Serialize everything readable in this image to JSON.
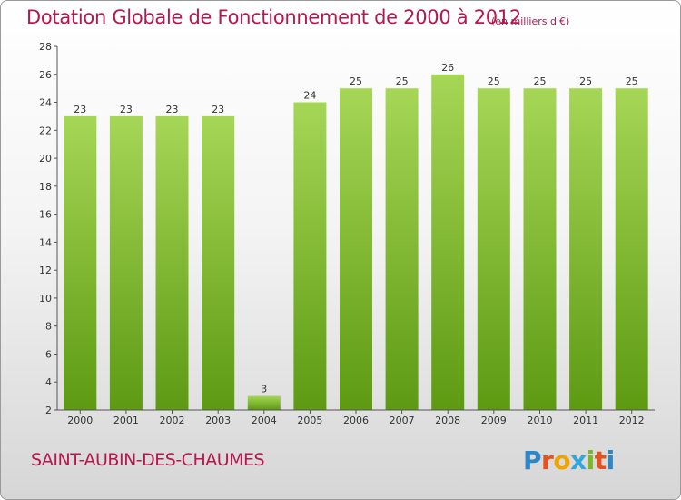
{
  "header": {
    "title": "Dotation Globale de Fonctionnement de 2000 à 2012",
    "units": "(en milliers d'€)"
  },
  "footer": {
    "commune": "SAINT-AUBIN-DES-CHAUMES",
    "brand_letters": [
      "P",
      "r",
      "o",
      "x",
      "i",
      "t",
      "i"
    ],
    "brand_colors": [
      "#2e86c8",
      "#e8501e",
      "#f0a400",
      "#35a6d8",
      "#7ab828",
      "#e8501e",
      "#2e86c8"
    ]
  },
  "colors": {
    "title": "#b5174e",
    "bar_light": "#a6d656",
    "bar_dark": "#5d9a12",
    "axis": "#555555"
  },
  "chart_data": {
    "type": "bar",
    "title": "Dotation Globale de Fonctionnement de 2000 à 2012",
    "xlabel": "",
    "ylabel": "",
    "categories": [
      "2000",
      "2001",
      "2002",
      "2003",
      "2004",
      "2005",
      "2006",
      "2007",
      "2008",
      "2009",
      "2010",
      "2011",
      "2012"
    ],
    "values": [
      23,
      23,
      23,
      23,
      3,
      24,
      25,
      25,
      26,
      25,
      25,
      25,
      25
    ],
    "data_labels": [
      "23",
      "23",
      "23",
      "23",
      "3",
      "24",
      "25",
      "25",
      "26",
      "25",
      "25",
      "25",
      "25"
    ],
    "ylim": [
      2,
      28
    ],
    "yticks": [
      2,
      4,
      6,
      8,
      10,
      12,
      14,
      16,
      18,
      20,
      22,
      24,
      26,
      28
    ],
    "ytick_labels": [
      "2",
      "4",
      "6",
      "8",
      "10",
      "12",
      "14",
      "16",
      "18",
      "20",
      "22",
      "24",
      "26",
      "28"
    ],
    "grid": false,
    "legend": "none"
  }
}
